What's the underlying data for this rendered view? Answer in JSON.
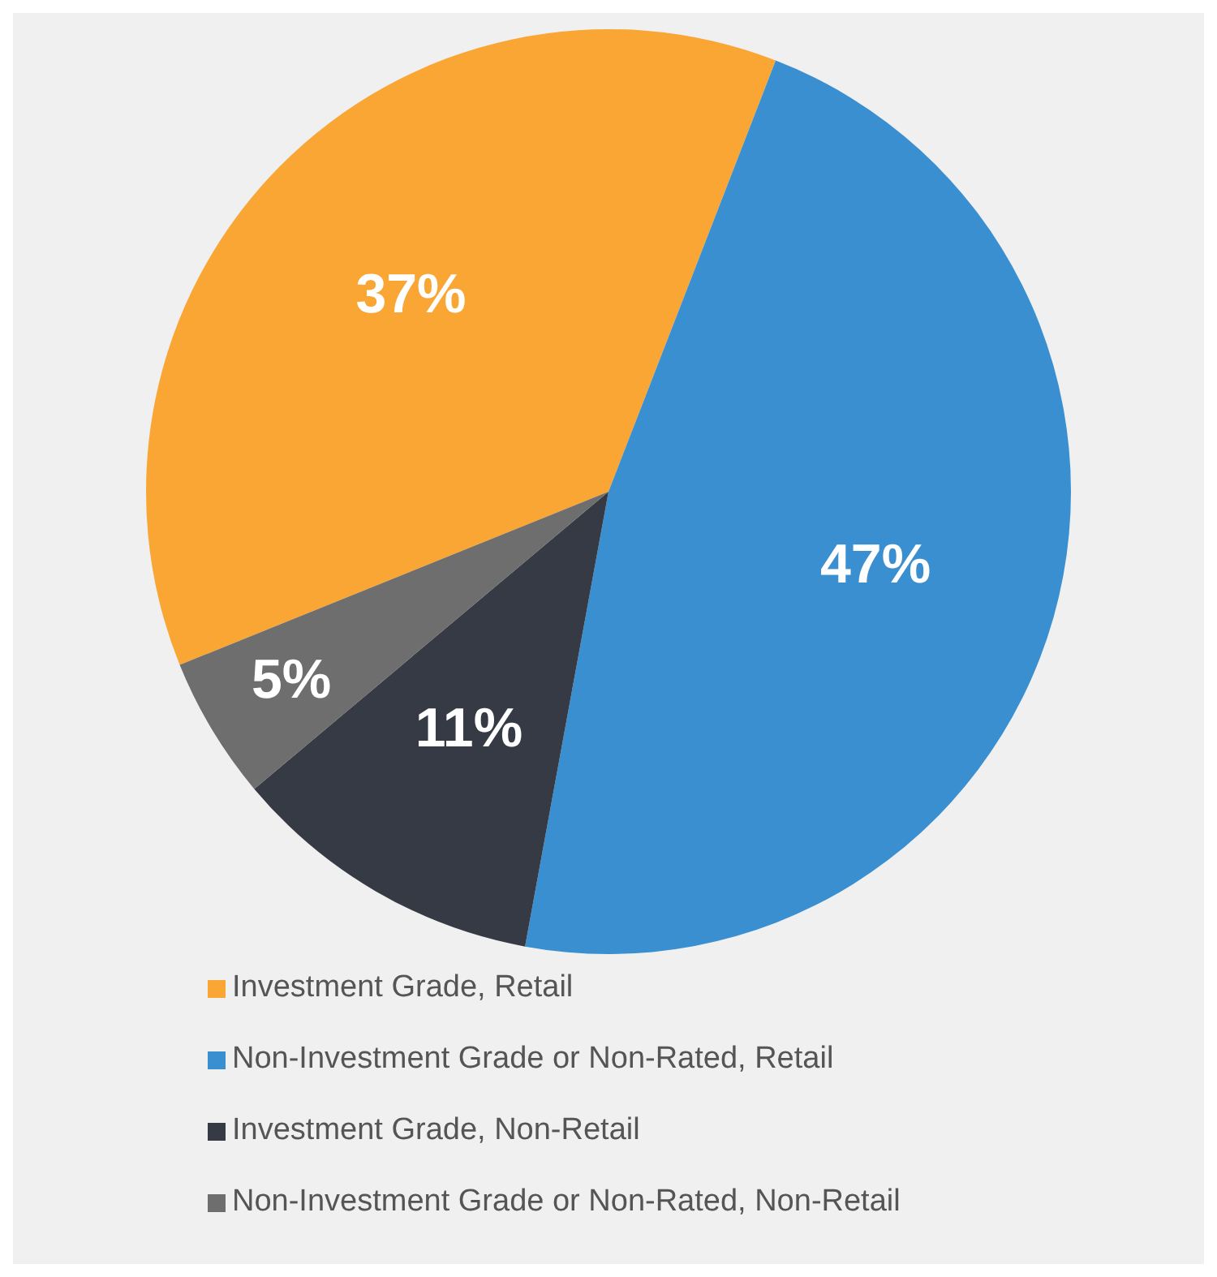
{
  "chart_data": {
    "type": "pie",
    "categories": [
      "Investment Grade, Retail",
      "Non-Investment Grade or Non-Rated, Retail",
      "Investment Grade, Non-Retail",
      "Non-Investment Grade or Non-Rated, Non-Retail"
    ],
    "values": [
      37,
      47,
      11,
      5
    ],
    "colors": [
      "#f9a635",
      "#3a8fd0",
      "#353a45",
      "#6e6e6e"
    ],
    "value_labels": [
      "37%",
      "47%",
      "11%",
      "5%"
    ],
    "legend": "bottom"
  }
}
